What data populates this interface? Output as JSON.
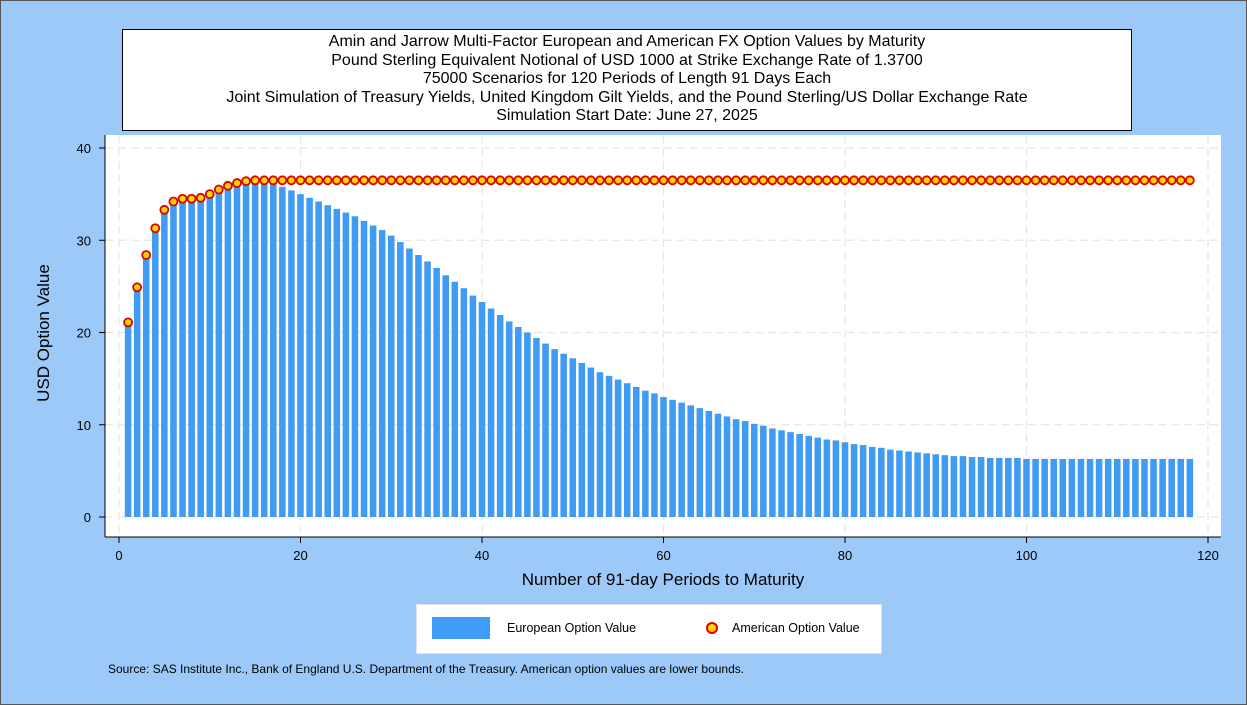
{
  "title_lines": [
    "Amin and Jarrow Multi-Factor European and American FX Option Values by Maturity",
    "Pound Sterling Equivalent Notional of USD 1000 at Strike Exchange Rate of  1.3700",
    "75000 Scenarios for 120 Periods of Length 91 Days Each",
    "Joint Simulation of Treasury Yields, United Kingdom Gilt Yields, and the Pound Sterling/US Dollar Exchange Rate",
    "Simulation Start Date: June 27, 2025"
  ],
  "legend": {
    "european": "European Option Value",
    "american": "American Option Value"
  },
  "source_note": "Source: SAS Institute Inc., Bank of England U.S. Department of the Treasury. American option values are lower bounds.",
  "colors": {
    "frame_bg": "#9dc9f8",
    "bar_fill": "#3f9bf3",
    "marker_fill": "#ffd600",
    "marker_stroke": "#e00000"
  },
  "chart_data": {
    "type": "bar",
    "xlabel": "Number of 91-day Periods to Maturity",
    "ylabel": "USD Option Value",
    "xlim": [
      0,
      120
    ],
    "ylim": [
      0,
      40
    ],
    "xticks": [
      0,
      20,
      40,
      60,
      80,
      100,
      120
    ],
    "yticks": [
      0,
      10,
      20,
      30,
      40
    ],
    "grid": true,
    "legend_position": "bottom",
    "x": [
      1,
      2,
      3,
      4,
      5,
      6,
      7,
      8,
      9,
      10,
      11,
      12,
      13,
      14,
      15,
      16,
      17,
      18,
      19,
      20,
      21,
      22,
      23,
      24,
      25,
      26,
      27,
      28,
      29,
      30,
      31,
      32,
      33,
      34,
      35,
      36,
      37,
      38,
      39,
      40,
      41,
      42,
      43,
      44,
      45,
      46,
      47,
      48,
      49,
      50,
      51,
      52,
      53,
      54,
      55,
      56,
      57,
      58,
      59,
      60,
      61,
      62,
      63,
      64,
      65,
      66,
      67,
      68,
      69,
      70,
      71,
      72,
      73,
      74,
      75,
      76,
      77,
      78,
      79,
      80,
      81,
      82,
      83,
      84,
      85,
      86,
      87,
      88,
      89,
      90,
      91,
      92,
      93,
      94,
      95,
      96,
      97,
      98,
      99,
      100,
      101,
      102,
      103,
      104,
      105,
      106,
      107,
      108,
      109,
      110,
      111,
      112,
      113,
      114,
      115,
      116,
      117,
      118
    ],
    "series": [
      {
        "name": "European Option Value",
        "type": "bar",
        "values": [
          21.1,
          24.9,
          28.4,
          31.3,
          33.3,
          34.2,
          34.5,
          34.5,
          34.6,
          35.0,
          35.5,
          35.9,
          36.2,
          36.4,
          36.4,
          36.3,
          36.1,
          35.8,
          35.4,
          35.0,
          34.6,
          34.2,
          33.8,
          33.4,
          33.0,
          32.6,
          32.1,
          31.6,
          31.1,
          30.5,
          29.8,
          29.1,
          28.4,
          27.7,
          27.0,
          26.2,
          25.5,
          24.8,
          24.0,
          23.3,
          22.6,
          21.9,
          21.2,
          20.6,
          20.0,
          19.4,
          18.8,
          18.2,
          17.7,
          17.2,
          16.7,
          16.2,
          15.7,
          15.3,
          14.9,
          14.5,
          14.1,
          13.7,
          13.4,
          13.0,
          12.7,
          12.4,
          12.1,
          11.8,
          11.5,
          11.2,
          10.9,
          10.6,
          10.4,
          10.1,
          9.9,
          9.6,
          9.4,
          9.2,
          9.0,
          8.8,
          8.6,
          8.4,
          8.3,
          8.1,
          7.9,
          7.8,
          7.6,
          7.5,
          7.3,
          7.2,
          7.1,
          7.0,
          6.9,
          6.8,
          6.7,
          6.6,
          6.6,
          6.5,
          6.5,
          6.4,
          6.4,
          6.4,
          6.4,
          6.3,
          6.3,
          6.3,
          6.3,
          6.3,
          6.3,
          6.3,
          6.3,
          6.3,
          6.3,
          6.3,
          6.3,
          6.3,
          6.3,
          6.3,
          6.3,
          6.3,
          6.3,
          6.3
        ]
      },
      {
        "name": "American Option Value",
        "type": "scatter",
        "values": [
          21.1,
          24.9,
          28.4,
          31.3,
          33.3,
          34.2,
          34.5,
          34.5,
          34.6,
          35.0,
          35.5,
          35.9,
          36.2,
          36.4,
          36.5,
          36.5,
          36.5,
          36.5,
          36.5,
          36.5,
          36.5,
          36.5,
          36.5,
          36.5,
          36.5,
          36.5,
          36.5,
          36.5,
          36.5,
          36.5,
          36.5,
          36.5,
          36.5,
          36.5,
          36.5,
          36.5,
          36.5,
          36.5,
          36.5,
          36.5,
          36.5,
          36.5,
          36.5,
          36.5,
          36.5,
          36.5,
          36.5,
          36.5,
          36.5,
          36.5,
          36.5,
          36.5,
          36.5,
          36.5,
          36.5,
          36.5,
          36.5,
          36.5,
          36.5,
          36.5,
          36.5,
          36.5,
          36.5,
          36.5,
          36.5,
          36.5,
          36.5,
          36.5,
          36.5,
          36.5,
          36.5,
          36.5,
          36.5,
          36.5,
          36.5,
          36.5,
          36.5,
          36.5,
          36.5,
          36.5,
          36.5,
          36.5,
          36.5,
          36.5,
          36.5,
          36.5,
          36.5,
          36.5,
          36.5,
          36.5,
          36.5,
          36.5,
          36.5,
          36.5,
          36.5,
          36.5,
          36.5,
          36.5,
          36.5,
          36.5,
          36.5,
          36.5,
          36.5,
          36.5,
          36.5,
          36.5,
          36.5,
          36.5,
          36.5,
          36.5,
          36.5,
          36.5,
          36.5,
          36.5,
          36.5,
          36.5,
          36.5,
          36.5
        ]
      }
    ]
  }
}
